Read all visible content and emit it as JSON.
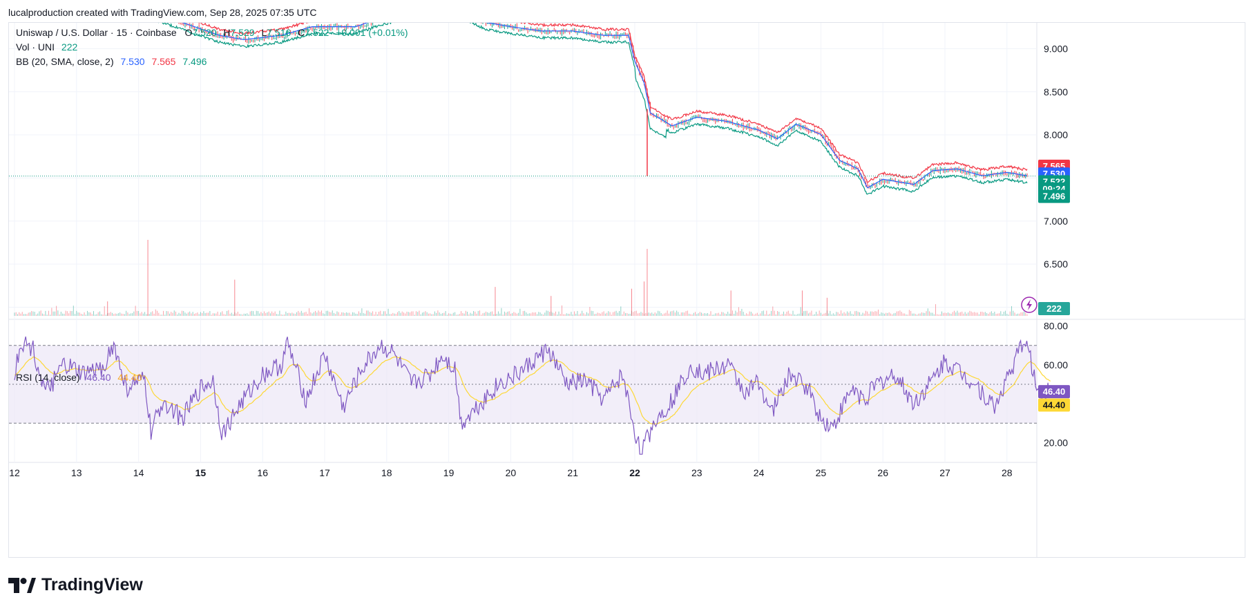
{
  "caption": "lucalproduction created with TradingView.com, Sep 28, 2025 07:35 UTC",
  "brand": "TradingView",
  "colors": {
    "up": "#089981",
    "down": "#f23645",
    "bb_basis": "#2962ff",
    "bb_upper": "#f23645",
    "bb_lower": "#089981",
    "rsi": "#7e57c2",
    "rsi_ma": "#fdd835",
    "rsi_band": "#ede7f6",
    "grid": "#f0f3fa",
    "axis_text": "#131722"
  },
  "legend": {
    "symbol": "Uniswap / U.S. Dollar · 15 · Coinbase",
    "o_label": "O",
    "o_value": "7.520",
    "h_label": "H",
    "h_value": "7.529",
    "l_label": "L",
    "l_value": "7.516",
    "c_label": "C",
    "c_value": "7.522",
    "change": "+0.001 (+0.01%)",
    "vol_label": "Vol · UNI",
    "vol_value": "222",
    "bb_label": "BB (20, SMA, close, 2)",
    "bb_basis": "7.530",
    "bb_upper": "7.565",
    "bb_lower": "7.496",
    "rsi_label": "RSI (14, close)",
    "rsi_value": "46.40",
    "rsi_ma": "44.40"
  },
  "badges": {
    "bb_upper": "7.565",
    "bb_basis": "7.530",
    "price": "7.522",
    "countdown": "09:24",
    "bb_lower": "7.496",
    "volume": "222",
    "rsi": "46.40",
    "rsi_ma": "44.40"
  },
  "chart_data": [
    {
      "type": "candlestick",
      "title": "Uniswap / U.S. Dollar · 15 · Coinbase",
      "x": [
        "12",
        "13",
        "14",
        "15",
        "16",
        "17",
        "18",
        "19",
        "20",
        "21",
        "22",
        "23",
        "24",
        "25",
        "26",
        "27",
        "28"
      ],
      "x_bold": [
        "15",
        "22"
      ],
      "y_ticks": [
        "9.000",
        "8.500",
        "8.000",
        "7.500",
        "7.000",
        "6.500",
        "6.000"
      ],
      "y_range": [
        5.9,
        9.3
      ],
      "last_price": 7.522,
      "price_path": [
        [
          12.0,
          9.55
        ],
        [
          12.5,
          9.5
        ],
        [
          13.5,
          9.5
        ],
        [
          14.3,
          9.4
        ],
        [
          15.3,
          9.15
        ],
        [
          15.7,
          9.1
        ],
        [
          16.3,
          9.15
        ],
        [
          16.8,
          9.25
        ],
        [
          17.5,
          9.25
        ],
        [
          17.9,
          9.35
        ],
        [
          18.5,
          9.45
        ],
        [
          19.3,
          9.4
        ],
        [
          19.6,
          9.3
        ],
        [
          20.0,
          9.25
        ],
        [
          20.5,
          9.2
        ],
        [
          21.0,
          9.2
        ],
        [
          21.5,
          9.15
        ],
        [
          21.9,
          9.15
        ],
        [
          22.0,
          8.85
        ],
        [
          22.15,
          8.6
        ],
        [
          22.25,
          8.25
        ],
        [
          22.6,
          8.1
        ],
        [
          23.0,
          8.2
        ],
        [
          23.5,
          8.15
        ],
        [
          24.0,
          8.05
        ],
        [
          24.3,
          7.95
        ],
        [
          24.6,
          8.12
        ],
        [
          25.0,
          8.0
        ],
        [
          25.3,
          7.7
        ],
        [
          25.6,
          7.6
        ],
        [
          25.75,
          7.38
        ],
        [
          26.0,
          7.48
        ],
        [
          26.5,
          7.42
        ],
        [
          26.8,
          7.58
        ],
        [
          27.2,
          7.6
        ],
        [
          27.6,
          7.52
        ],
        [
          28.0,
          7.56
        ],
        [
          28.3,
          7.522
        ]
      ],
      "bb_upper": [
        7.565
      ],
      "bb_basis": [
        7.53
      ],
      "bb_lower": [
        7.496
      ]
    },
    {
      "type": "bar",
      "title": "Vol · UNI",
      "last_value": 222,
      "spikes": [
        [
          14.15,
          210
        ],
        [
          22.2,
          185
        ],
        [
          22.15,
          95
        ],
        [
          15.55,
          100
        ],
        [
          19.75,
          80
        ],
        [
          23.55,
          70
        ],
        [
          25.1,
          50
        ],
        [
          21.95,
          75
        ],
        [
          13.5,
          40
        ],
        [
          24.7,
          70
        ],
        [
          20.65,
          55
        ]
      ]
    },
    {
      "type": "line",
      "title": "RSI (14, close)",
      "y_ticks": [
        "80.00",
        "60.00",
        "20.00"
      ],
      "y_range": [
        13,
        82
      ],
      "bands": [
        30,
        50,
        70
      ],
      "series": [
        {
          "name": "RSI",
          "last_value": 46.4,
          "path": [
            [
              12.0,
              55
            ],
            [
              12.1,
              72
            ],
            [
              12.3,
              68
            ],
            [
              12.5,
              45
            ],
            [
              12.8,
              60
            ],
            [
              13.1,
              55
            ],
            [
              13.4,
              58
            ],
            [
              13.6,
              70
            ],
            [
              13.8,
              48
            ],
            [
              14.1,
              52
            ],
            [
              14.2,
              25
            ],
            [
              14.4,
              42
            ],
            [
              14.7,
              32
            ],
            [
              15.0,
              48
            ],
            [
              15.2,
              52
            ],
            [
              15.35,
              24
            ],
            [
              15.6,
              38
            ],
            [
              16.0,
              55
            ],
            [
              16.3,
              60
            ],
            [
              16.4,
              71
            ],
            [
              16.7,
              42
            ],
            [
              17.0,
              65
            ],
            [
              17.3,
              38
            ],
            [
              17.6,
              58
            ],
            [
              17.9,
              70
            ],
            [
              18.1,
              66
            ],
            [
              18.4,
              50
            ],
            [
              18.7,
              55
            ],
            [
              18.9,
              65
            ],
            [
              19.1,
              58
            ],
            [
              19.2,
              30
            ],
            [
              19.5,
              40
            ],
            [
              19.8,
              50
            ],
            [
              20.1,
              55
            ],
            [
              20.3,
              60
            ],
            [
              20.6,
              68
            ],
            [
              20.9,
              50
            ],
            [
              21.2,
              52
            ],
            [
              21.5,
              42
            ],
            [
              21.8,
              55
            ],
            [
              22.0,
              26
            ],
            [
              22.1,
              14
            ],
            [
              22.3,
              30
            ],
            [
              22.6,
              42
            ],
            [
              22.9,
              60
            ],
            [
              23.1,
              55
            ],
            [
              23.5,
              60
            ],
            [
              23.8,
              45
            ],
            [
              24.0,
              52
            ],
            [
              24.2,
              35
            ],
            [
              24.5,
              55
            ],
            [
              24.8,
              48
            ],
            [
              25.0,
              32
            ],
            [
              25.2,
              28
            ],
            [
              25.5,
              48
            ],
            [
              25.7,
              42
            ],
            [
              25.9,
              50
            ],
            [
              26.2,
              55
            ],
            [
              26.5,
              40
            ],
            [
              26.8,
              52
            ],
            [
              27.0,
              62
            ],
            [
              27.3,
              55
            ],
            [
              27.5,
              50
            ],
            [
              27.8,
              38
            ],
            [
              28.1,
              60
            ],
            [
              28.3,
              74
            ],
            [
              28.5,
              45
            ],
            [
              28.7,
              46.4
            ]
          ]
        },
        {
          "name": "RSI MA",
          "last_value": 44.4
        }
      ]
    }
  ]
}
